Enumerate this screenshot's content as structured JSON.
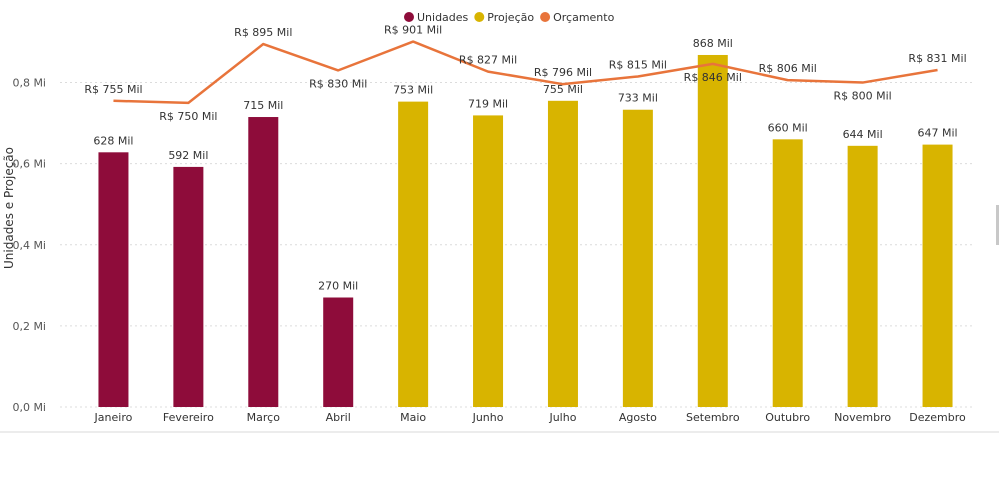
{
  "chart_data": {
    "type": "bar",
    "ylabel": "Unidades e Projeção",
    "categories": [
      "Janeiro",
      "Fevereiro",
      "Março",
      "Abril",
      "Maio",
      "Junho",
      "Julho",
      "Agosto",
      "Setembro",
      "Outubro",
      "Novembro",
      "Dezembro"
    ],
    "y_ticks": [
      {
        "value": 0,
        "label": "0,0 Mi"
      },
      {
        "value": 200000,
        "label": "0,2 Mi"
      },
      {
        "value": 400000,
        "label": "0,4 Mi"
      },
      {
        "value": 600000,
        "label": "0,6 Mi"
      },
      {
        "value": 800000,
        "label": "0,8 Mi"
      }
    ],
    "ylim": [
      0,
      900000
    ],
    "grid": true,
    "legend_position": "top-center",
    "series": [
      {
        "name": "Unidades",
        "type": "bar",
        "color": "#8e0c3a",
        "values": [
          628000,
          592000,
          715000,
          270000,
          null,
          null,
          null,
          null,
          null,
          null,
          null,
          null
        ],
        "labels": [
          "628 Mil",
          "592 Mil",
          "715 Mil",
          "270 Mil",
          "",
          "",
          "",
          "",
          "",
          "",
          "",
          ""
        ]
      },
      {
        "name": "Projeção",
        "type": "bar",
        "color": "#d8b400",
        "values": [
          null,
          null,
          null,
          null,
          753000,
          719000,
          755000,
          733000,
          868000,
          660000,
          644000,
          647000
        ],
        "labels": [
          "",
          "",
          "",
          "",
          "753 Mil",
          "719 Mil",
          "755 Mil",
          "733 Mil",
          "868 Mil",
          "660 Mil",
          "644 Mil",
          "647 Mil"
        ]
      },
      {
        "name": "Orçamento",
        "type": "line",
        "color": "#e8743b",
        "values": [
          755000,
          750000,
          895000,
          830000,
          901000,
          827000,
          796000,
          815000,
          846000,
          806000,
          800000,
          831000
        ],
        "labels": [
          "R$ 755 Mil",
          "R$ 750 Mil",
          "R$ 895 Mil",
          "R$ 830 Mil",
          "R$ 901 Mil",
          "R$ 827 Mil",
          "R$ 796 Mil",
          "R$ 815 Mil",
          "R$ 846 Mil",
          "R$ 806 Mil",
          "R$ 800 Mil",
          "R$ 831 Mil"
        ]
      }
    ]
  }
}
